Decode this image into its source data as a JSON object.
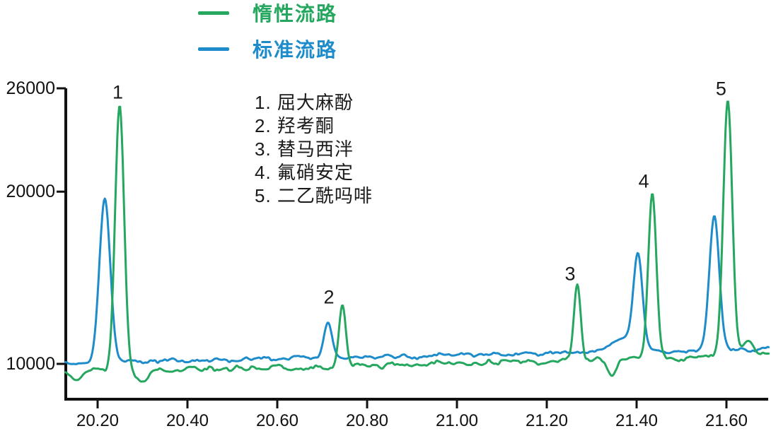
{
  "legend": {
    "items": [
      {
        "label": "惰性流路",
        "color": "#25A75F"
      },
      {
        "label": "标准流路",
        "color": "#1E8CCB"
      }
    ]
  },
  "annotations": {
    "compounds": [
      "1. 屈大麻酚",
      "2. 羟考酮",
      "3. 替马西泮",
      "4. 氟硝安定",
      "5. 二乙酰吗啡"
    ]
  },
  "chart_data": {
    "type": "line",
    "title": "",
    "xlabel": "",
    "ylabel": "",
    "xlim": [
      20.128,
      21.693
    ],
    "ylim": [
      10000,
      26000
    ],
    "grid": false,
    "axis_color": "#111111",
    "x_ticks": [
      {
        "value": 20.2,
        "label": "20.20"
      },
      {
        "value": 20.4,
        "label": "20.40"
      },
      {
        "value": 20.6,
        "label": "20.60"
      },
      {
        "value": 20.8,
        "label": "20.80"
      },
      {
        "value": 21.0,
        "label": "21.00"
      },
      {
        "value": 21.2,
        "label": "21.20"
      },
      {
        "value": 21.4,
        "label": "21.40"
      },
      {
        "value": 21.6,
        "label": "21.60"
      }
    ],
    "y_ticks": [
      {
        "value": 26000,
        "label": "26000"
      },
      {
        "value": 20000,
        "label": "20000"
      },
      {
        "value": 10000,
        "label": "10000"
      }
    ],
    "series": [
      {
        "name": "惰性流路",
        "color": "#25A75F",
        "baseline_start": 9500,
        "baseline_end": 10450,
        "noise_amp": 210,
        "seed": 7,
        "peaks": [
          {
            "t": 20.249,
            "v": 25000,
            "sigma": 0.01,
            "label": "1"
          },
          {
            "t": 20.745,
            "v": 13400,
            "sigma": 0.0075,
            "label": "2"
          },
          {
            "t": 21.268,
            "v": 14600,
            "sigma": 0.0075,
            "label": "3"
          },
          {
            "t": 21.435,
            "v": 19900,
            "sigma": 0.009,
            "label": "4"
          },
          {
            "t": 21.603,
            "v": 25300,
            "sigma": 0.01,
            "label": "5"
          },
          {
            "t": 20.152,
            "v": 9000,
            "sigma": 0.012
          },
          {
            "t": 20.3,
            "v": 9050,
            "sigma": 0.013
          },
          {
            "t": 21.345,
            "v": 9250,
            "sigma": 0.01
          },
          {
            "t": 21.648,
            "v": 11350,
            "sigma": 0.012
          }
        ]
      },
      {
        "name": "标准流路",
        "color": "#1E8CCB",
        "baseline_start": 10050,
        "baseline_end": 10850,
        "noise_amp": 160,
        "seed": 3,
        "peaks": [
          {
            "t": 20.216,
            "v": 19600,
            "sigma": 0.012,
            "label": "1"
          },
          {
            "t": 20.713,
            "v": 12400,
            "sigma": 0.009,
            "label": "2"
          },
          {
            "t": 21.403,
            "v": 16000,
            "sigma": 0.01,
            "label": "4"
          },
          {
            "t": 21.573,
            "v": 18600,
            "sigma": 0.011,
            "label": "5"
          },
          {
            "t": 21.37,
            "v": 11500,
            "sigma": 0.03
          }
        ]
      }
    ],
    "peak_labels": [
      {
        "text": "1",
        "t": 20.245,
        "v": 25750
      },
      {
        "text": "2",
        "t": 20.715,
        "v": 13850
      },
      {
        "text": "3",
        "t": 21.252,
        "v": 15200
      },
      {
        "text": "4",
        "t": 21.416,
        "v": 20600
      },
      {
        "text": "5",
        "t": 21.588,
        "v": 25950
      }
    ]
  }
}
